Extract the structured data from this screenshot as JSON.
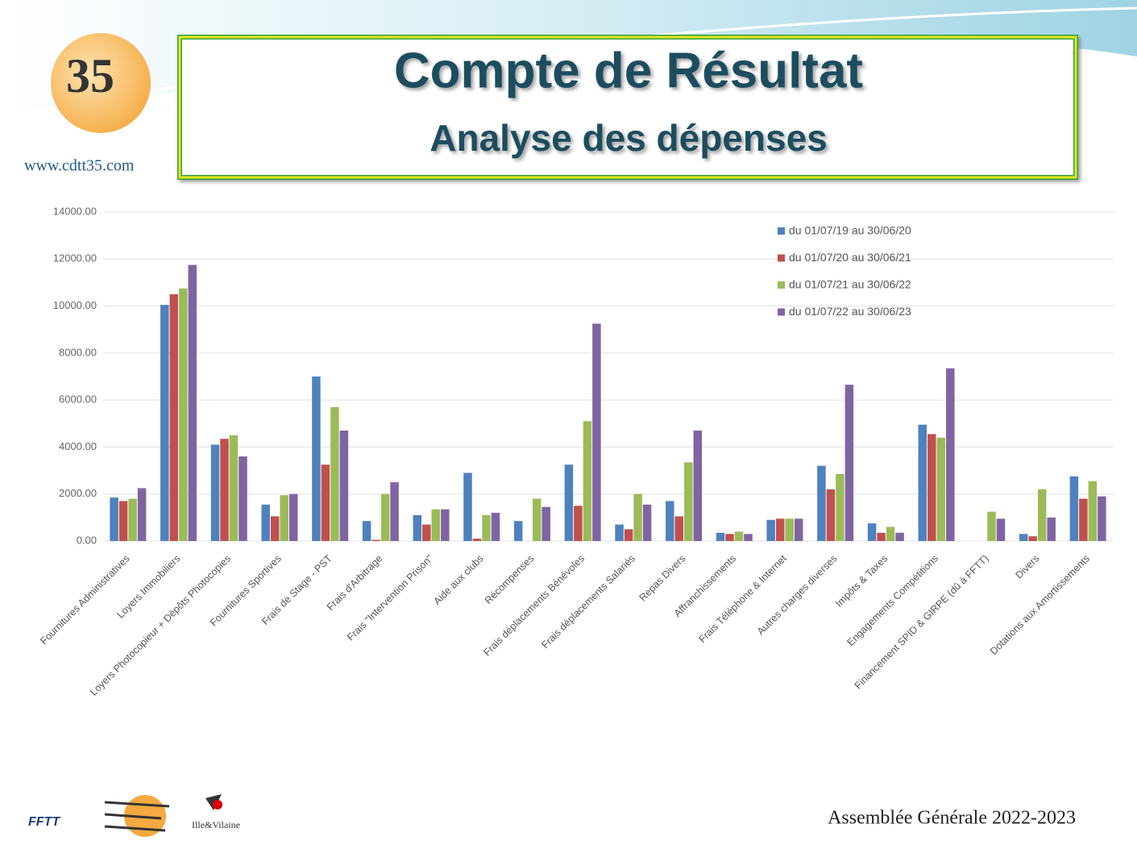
{
  "header": {
    "title": "Compte de Résultat",
    "subtitle": "Analyse des dépenses",
    "website": "www.cdtt35.com"
  },
  "footer": {
    "text": "Assemblée Générale 2022-2023",
    "logo_text": "Ille&Vilaine"
  },
  "chart_data": {
    "type": "bar",
    "categories": [
      "Fournitures Administratives",
      "Loyers Immobiliers",
      "Loyers Photocopieur + Dépôts Photocopies",
      "Fournitures Sportives",
      "Frais de Stage - PST",
      "Frais d'Arbitrage",
      "Frais \"Intervention Prison\"",
      "Aide aux clubs",
      "Récompenses",
      "Frais déplacements Bénévoles",
      "Frais déplacements Salariés",
      "Repas Divers",
      "Affranchissements",
      "Frais Téléphone & Internet",
      "Autres charges diverses",
      "Impôts & Taxes",
      "Engagements Compétitions",
      "Financement SPID & GIRPE (dû à FFTT)",
      "Divers",
      "Dotations aux Amortissements"
    ],
    "series": [
      {
        "name": "du 01/07/19 au 30/06/20",
        "color": "#4f81bd",
        "values": [
          1850,
          10050,
          4100,
          1550,
          7000,
          850,
          1100,
          2900,
          850,
          3250,
          700,
          1700,
          350,
          900,
          3200,
          750,
          4950,
          0,
          300,
          2750
        ]
      },
      {
        "name": "du 01/07/20 au 30/06/21",
        "color": "#c0504d",
        "values": [
          1700,
          10500,
          4350,
          1050,
          3250,
          50,
          700,
          100,
          0,
          1500,
          500,
          1050,
          300,
          950,
          2200,
          350,
          4550,
          0,
          200,
          1800
        ]
      },
      {
        "name": "du 01/07/21 au 30/06/22",
        "color": "#9bbb59",
        "values": [
          1800,
          10750,
          4500,
          1950,
          5700,
          2000,
          1350,
          1100,
          1800,
          5100,
          2000,
          3350,
          400,
          950,
          2850,
          600,
          4400,
          1250,
          2200,
          2550
        ]
      },
      {
        "name": "du 01/07/22 au 30/06/23",
        "color": "#8064a2",
        "values": [
          2250,
          11750,
          3600,
          2000,
          4700,
          2500,
          1350,
          1200,
          1450,
          9250,
          1550,
          4700,
          300,
          950,
          6650,
          350,
          7350,
          950,
          1000,
          1900
        ]
      }
    ],
    "ylim": [
      0,
      14000
    ],
    "yticks": [
      {
        "value": 0,
        "label": "0.00"
      },
      {
        "value": 2000,
        "label": "2000.00"
      },
      {
        "value": 4000,
        "label": "4000.00"
      },
      {
        "value": 6000,
        "label": "6000.00"
      },
      {
        "value": 8000,
        "label": "8000.00"
      },
      {
        "value": 10000,
        "label": "10000.00"
      },
      {
        "value": 12000,
        "label": "12000.00"
      },
      {
        "value": 14000,
        "label": "14000.00"
      }
    ],
    "grid": true,
    "legend": "top-right"
  }
}
